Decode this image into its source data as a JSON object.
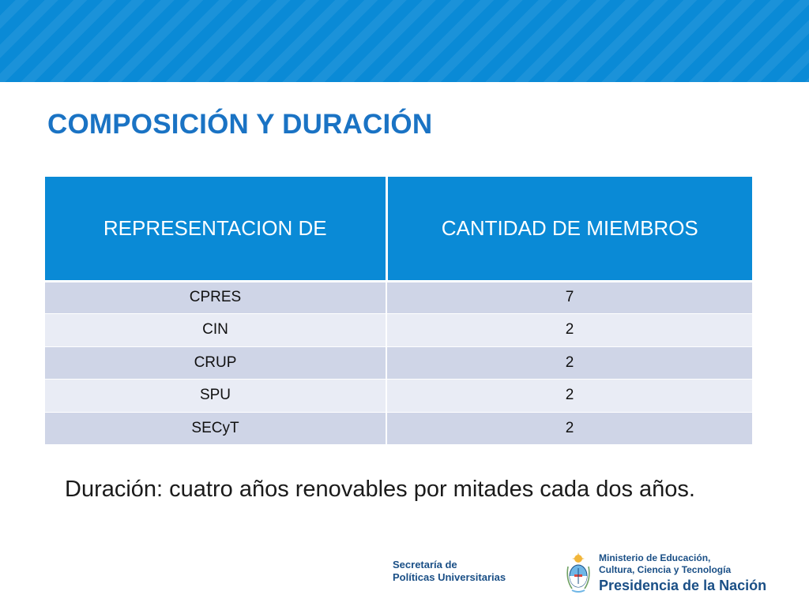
{
  "slide": {
    "title": "COMPOSICIÓN Y DURACIÓN",
    "table": {
      "headers": [
        "REPRESENTACION DE",
        "CANTIDAD DE MIEMBROS"
      ],
      "rows": [
        [
          "CPRES",
          "7"
        ],
        [
          "CIN",
          "2"
        ],
        [
          "CRUP",
          "2"
        ],
        [
          "SPU",
          "2"
        ],
        [
          "SECyT",
          "2"
        ]
      ]
    },
    "note": "Duración: cuatro años renovables por mitades cada dos años."
  },
  "footer": {
    "secretaria": {
      "line1": "Secretaría de",
      "line2": "Políticas Universitarias"
    },
    "ministerio": {
      "line1": "Ministerio de Educación,",
      "line2": "Cultura, Ciencia y Tecnología",
      "line3": "Presidencia de la Nación"
    }
  },
  "colors": {
    "band": "#0a8ad6",
    "title": "#1a73c4",
    "header_cell": "#0a8ad6",
    "row_dark": "#cfd5e7",
    "row_light": "#e9ecf5",
    "footer_text": "#1a4f86"
  },
  "icons": [
    "argentina-coat-of-arms-icon"
  ]
}
